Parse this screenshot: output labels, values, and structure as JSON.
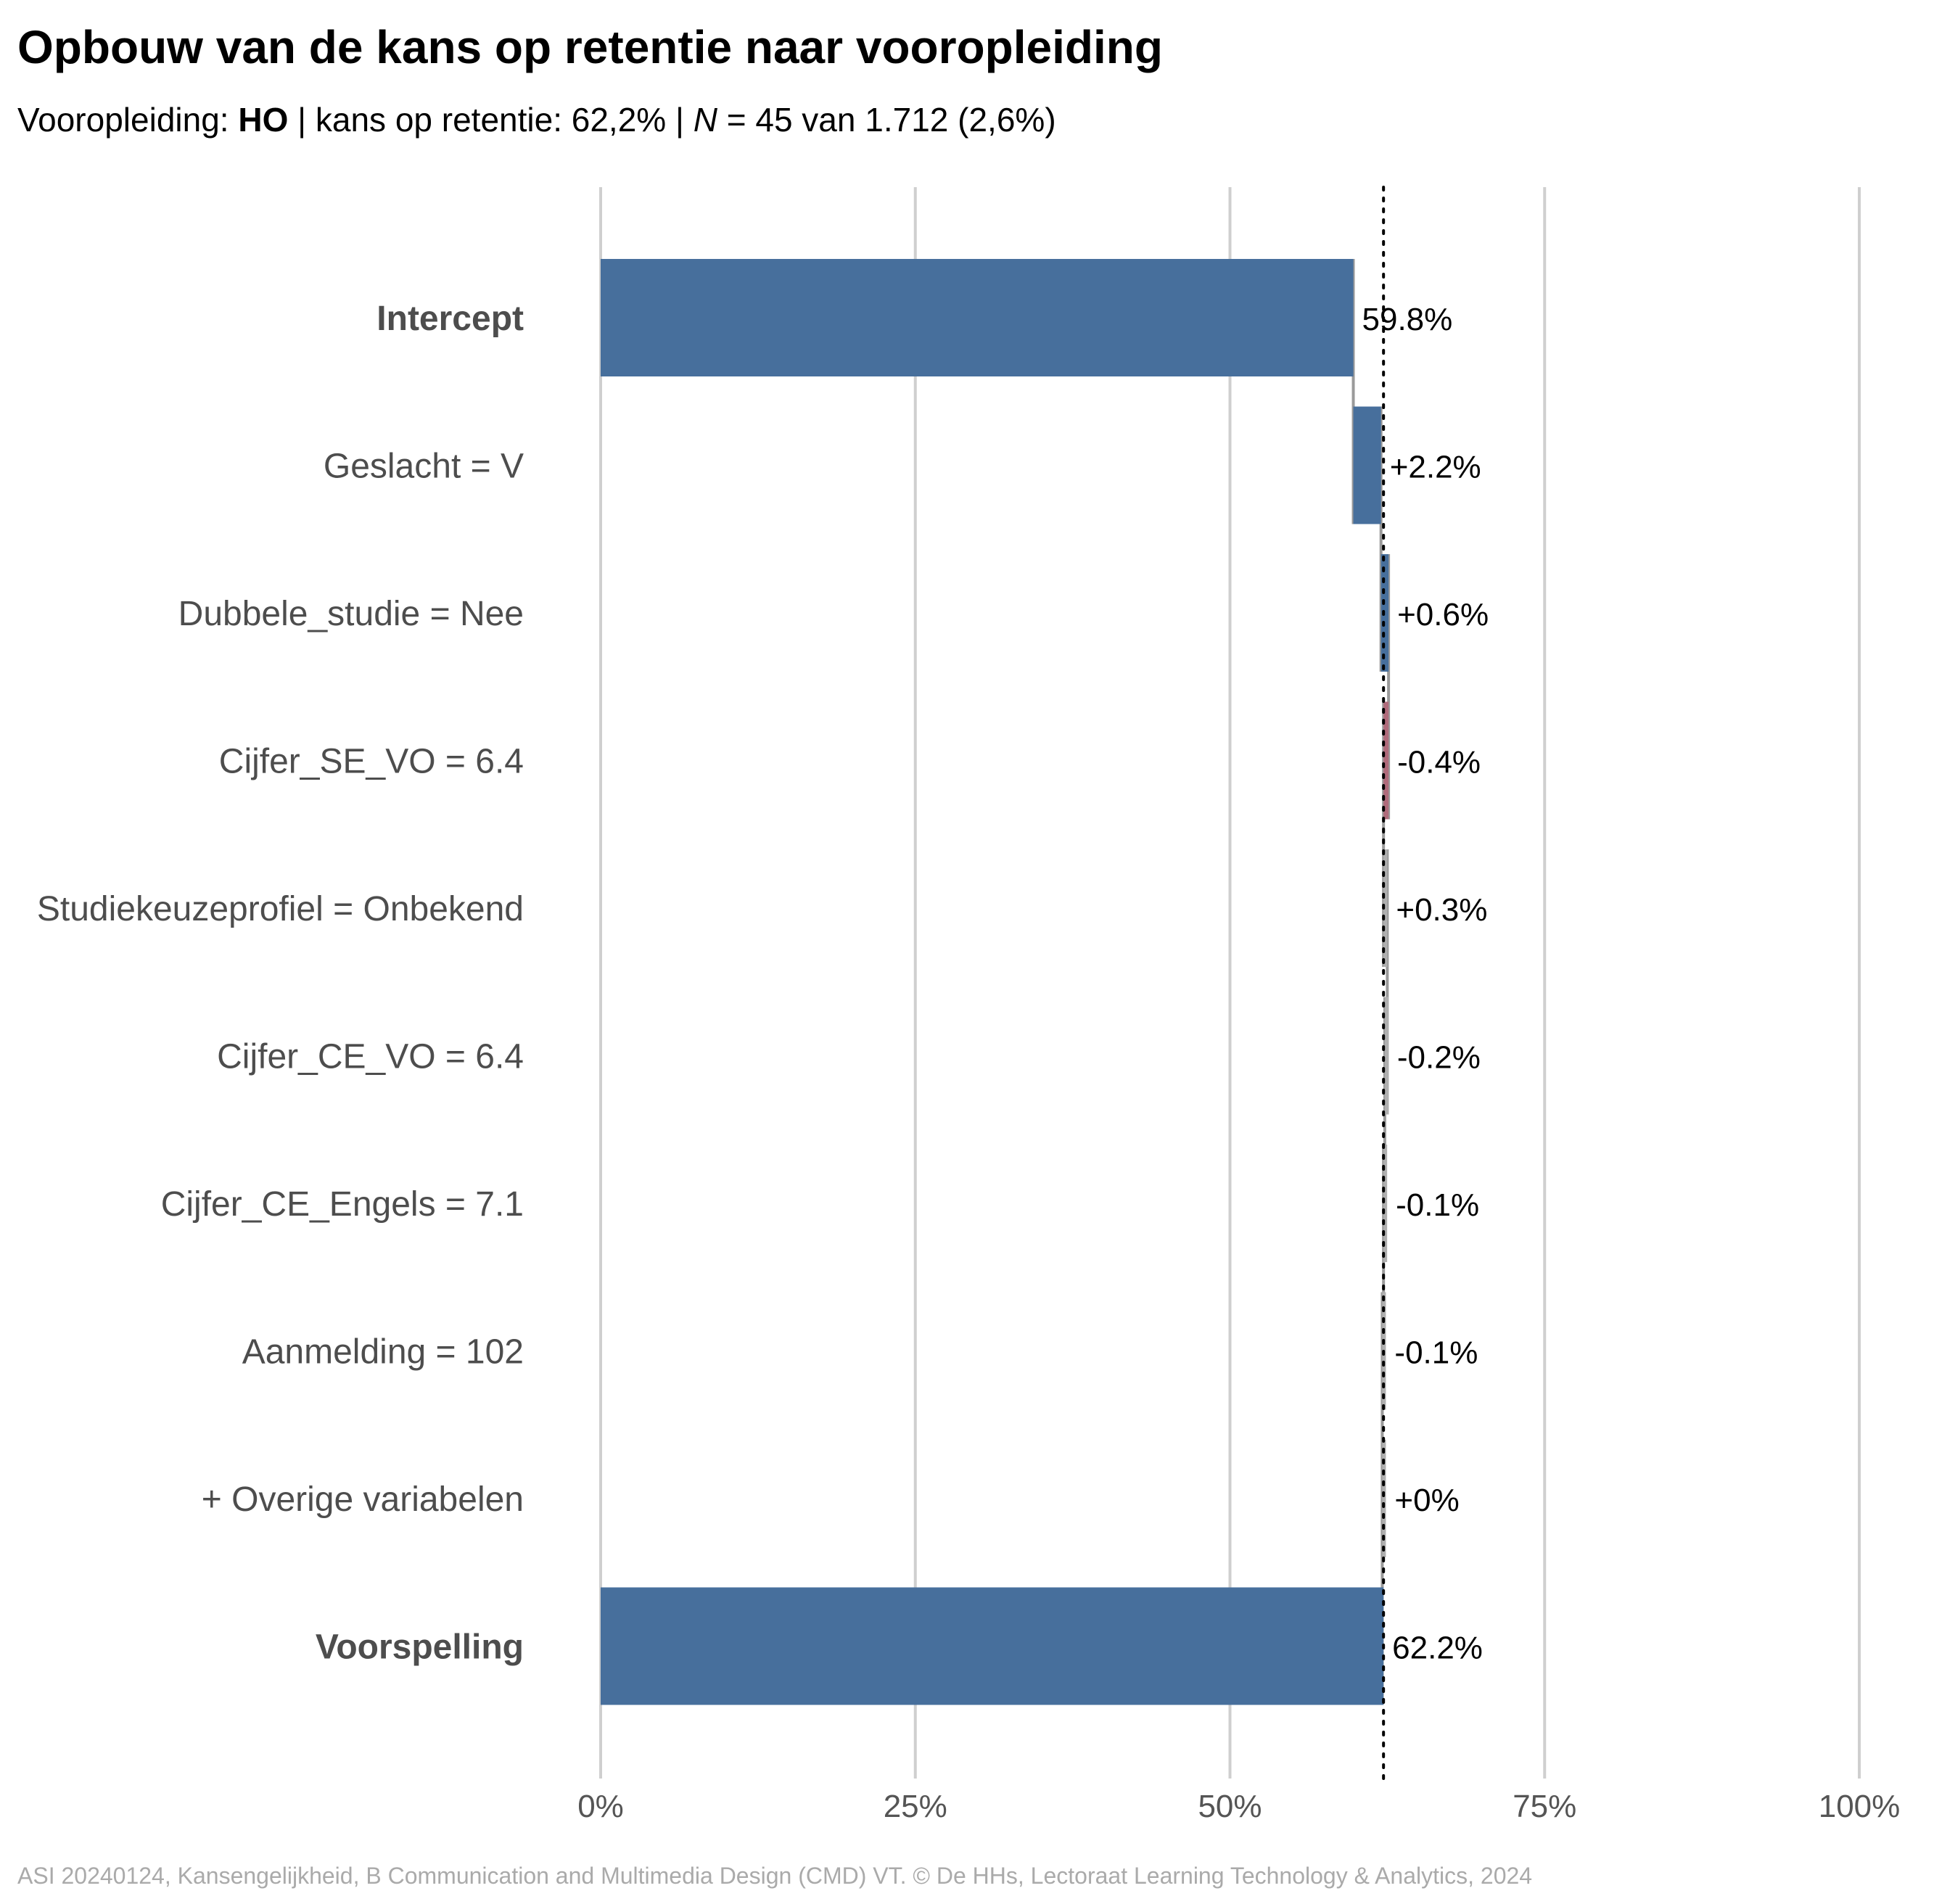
{
  "title": "Opbouw van de kans op retentie naar vooropleiding",
  "subtitle": {
    "prefix": "Vooropleiding: ",
    "group": "HO",
    "middle": " | kans op retentie: 62,2% | ",
    "n_symbol": "N",
    "suffix": " = 45 van 1.712 (2,6%)"
  },
  "caption": "ASI 20240124, Kansengelijkheid, B Communication and Multimedia Design (CMD) VT. © De HHs, Lectoraat Learning Technology & Analytics, 2024",
  "colors": {
    "positive": "#476f9c",
    "negative": "#b06b7b",
    "small": "#b0b0b0",
    "connector": "#9a9a9a",
    "grid": "#cfcfcf",
    "axis_text": "#555555",
    "label_text": "#4d4d4d"
  },
  "chart_data": {
    "type": "bar",
    "subtype": "waterfall",
    "orientation": "horizontal",
    "xlim": [
      0,
      100
    ],
    "xticks": [
      0,
      25,
      50,
      75,
      100
    ],
    "xtick_labels": [
      "0%",
      "25%",
      "50%",
      "75%",
      "100%"
    ],
    "reference_line": 62.2,
    "grid": true,
    "rows": [
      {
        "label": "Intercept",
        "value": 59.8,
        "value_label": "59.8%",
        "kind": "total",
        "bold": true
      },
      {
        "label": "Geslacht = V",
        "value": 2.2,
        "value_label": "+2.2%",
        "kind": "delta"
      },
      {
        "label": "Dubbele_studie = Nee",
        "value": 0.6,
        "value_label": "+0.6%",
        "kind": "delta"
      },
      {
        "label": "Cijfer_SE_VO = 6.4",
        "value": -0.4,
        "value_label": "-0.4%",
        "kind": "delta"
      },
      {
        "label": "Studiekeuzeprofiel = Onbekend",
        "value": 0.3,
        "value_label": "+0.3%",
        "kind": "delta"
      },
      {
        "label": "Cijfer_CE_VO = 6.4",
        "value": -0.2,
        "value_label": "-0.2%",
        "kind": "delta"
      },
      {
        "label": "Cijfer_CE_Engels = 7.1",
        "value": -0.1,
        "value_label": "-0.1%",
        "kind": "delta"
      },
      {
        "label": "Aanmelding = 102",
        "value": -0.1,
        "value_label": "-0.1%",
        "kind": "delta"
      },
      {
        "label": "+ Overige variabelen",
        "value": 0.0,
        "value_label": "+0%",
        "kind": "delta"
      },
      {
        "label": "Voorspelling",
        "value": 62.2,
        "value_label": "62.2%",
        "kind": "total",
        "bold": true
      }
    ]
  }
}
